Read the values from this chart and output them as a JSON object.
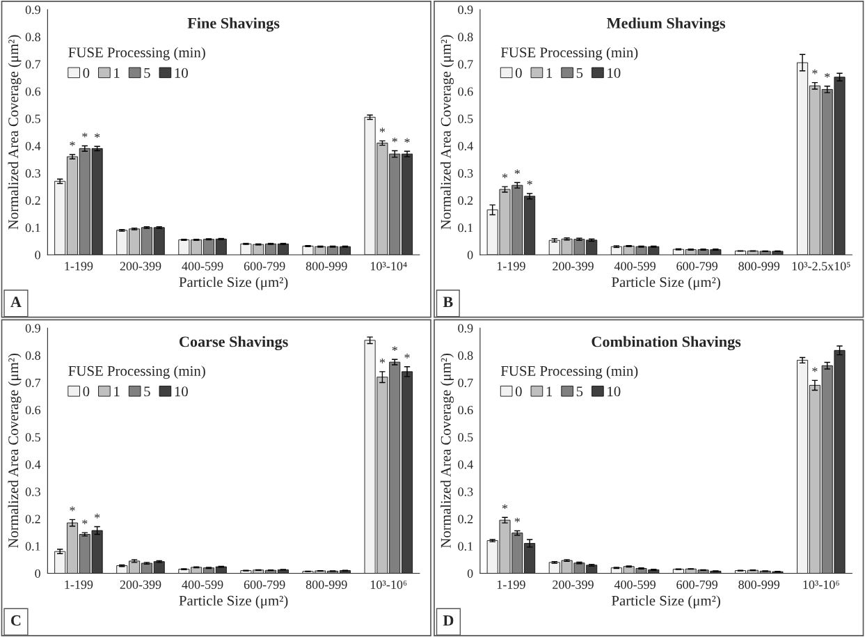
{
  "chart_data": [
    {
      "type": "bar",
      "title": "Fine Shavings",
      "xlabel": "Particle Size (μm²)",
      "ylabel": "Normalized Area Coverage (μm²)",
      "legend_title": "FUSE Processing (min)",
      "legend": "top left",
      "annotations": [
        "A"
      ],
      "categories": [
        "1-199",
        "200-399",
        "400-599",
        "600-799",
        "800-999",
        "10³-10⁴"
      ],
      "ylim": [
        0,
        0.9
      ],
      "yticks": [
        0,
        0.1,
        0.2,
        0.3,
        0.4,
        0.5,
        0.6,
        0.7,
        0.8,
        0.9
      ],
      "series": [
        {
          "name": "0",
          "color": "#f2f2f2",
          "values": [
            0.27,
            0.09,
            0.055,
            0.04,
            0.032,
            0.505
          ],
          "errors": [
            0.008,
            0.003,
            0.002,
            0.002,
            0.002,
            0.008
          ]
        },
        {
          "name": "1",
          "color": "#bfbfbf",
          "values": [
            0.36,
            0.095,
            0.055,
            0.038,
            0.03,
            0.41
          ],
          "errors": [
            0.008,
            0.003,
            0.002,
            0.002,
            0.002,
            0.008
          ],
          "value_labels": [
            "*",
            null,
            null,
            null,
            null,
            "*"
          ]
        },
        {
          "name": "5",
          "color": "#808080",
          "values": [
            0.39,
            0.1,
            0.057,
            0.04,
            0.03,
            0.37
          ],
          "errors": [
            0.01,
            0.003,
            0.002,
            0.002,
            0.002,
            0.012
          ],
          "value_labels": [
            "*",
            null,
            null,
            null,
            null,
            "*"
          ]
        },
        {
          "name": "10",
          "color": "#404040",
          "values": [
            0.39,
            0.1,
            0.058,
            0.04,
            0.03,
            0.37
          ],
          "errors": [
            0.008,
            0.003,
            0.002,
            0.002,
            0.002,
            0.01
          ],
          "value_labels": [
            "*",
            null,
            null,
            null,
            null,
            "*"
          ]
        }
      ]
    },
    {
      "type": "bar",
      "title": "Medium Shavings",
      "xlabel": "Particle Size (μm²)",
      "ylabel": "Normalized Area Coverage (μm²)",
      "legend_title": "FUSE Processing (min)",
      "legend": "top left",
      "annotations": [
        "B"
      ],
      "categories": [
        "1-199",
        "200-399",
        "400-599",
        "600-799",
        "800-999",
        "10³-2.5x10⁵"
      ],
      "ylim": [
        0,
        0.9
      ],
      "yticks": [
        0,
        0.1,
        0.2,
        0.3,
        0.4,
        0.5,
        0.6,
        0.7,
        0.8,
        0.9
      ],
      "series": [
        {
          "name": "0",
          "color": "#f2f2f2",
          "values": [
            0.165,
            0.053,
            0.03,
            0.02,
            0.014,
            0.705
          ],
          "errors": [
            0.018,
            0.006,
            0.003,
            0.002,
            0.001,
            0.03
          ]
        },
        {
          "name": "1",
          "color": "#bfbfbf",
          "values": [
            0.24,
            0.058,
            0.032,
            0.019,
            0.014,
            0.62
          ],
          "errors": [
            0.01,
            0.004,
            0.002,
            0.002,
            0.001,
            0.012
          ],
          "value_labels": [
            "*",
            null,
            null,
            null,
            null,
            "*"
          ]
        },
        {
          "name": "5",
          "color": "#808080",
          "values": [
            0.255,
            0.057,
            0.03,
            0.019,
            0.013,
            0.607
          ],
          "errors": [
            0.01,
            0.004,
            0.002,
            0.002,
            0.001,
            0.012
          ],
          "value_labels": [
            "*",
            null,
            null,
            null,
            null,
            "*"
          ]
        },
        {
          "name": "10",
          "color": "#404040",
          "values": [
            0.215,
            0.054,
            0.03,
            0.019,
            0.013,
            0.652
          ],
          "errors": [
            0.01,
            0.004,
            0.002,
            0.002,
            0.001,
            0.014
          ],
          "value_labels": [
            "*",
            null,
            null,
            null,
            null,
            null
          ]
        }
      ]
    },
    {
      "type": "bar",
      "title": "Coarse Shavings",
      "xlabel": "Particle Size (μm²)",
      "ylabel": "Normalized Area Coverage (μm²)",
      "legend_title": "FUSE Processing (min)",
      "legend": "top left",
      "annotations": [
        "C"
      ],
      "categories": [
        "1-199",
        "200-399",
        "400-599",
        "600-799",
        "800-999",
        "10³-10⁶"
      ],
      "ylim": [
        0,
        0.9
      ],
      "yticks": [
        0,
        0.1,
        0.2,
        0.3,
        0.4,
        0.5,
        0.6,
        0.7,
        0.8,
        0.9
      ],
      "series": [
        {
          "name": "0",
          "color": "#f2f2f2",
          "values": [
            0.08,
            0.028,
            0.015,
            0.01,
            0.007,
            0.855
          ],
          "errors": [
            0.008,
            0.003,
            0.002,
            0.001,
            0.001,
            0.012
          ]
        },
        {
          "name": "1",
          "color": "#bfbfbf",
          "values": [
            0.185,
            0.045,
            0.022,
            0.012,
            0.009,
            0.72
          ],
          "errors": [
            0.012,
            0.005,
            0.002,
            0.001,
            0.001,
            0.02
          ],
          "value_labels": [
            "*",
            null,
            null,
            null,
            null,
            "*"
          ]
        },
        {
          "name": "5",
          "color": "#808080",
          "values": [
            0.143,
            0.037,
            0.02,
            0.011,
            0.008,
            0.775
          ],
          "errors": [
            0.006,
            0.003,
            0.002,
            0.001,
            0.001,
            0.01
          ],
          "value_labels": [
            "*",
            null,
            null,
            null,
            null,
            "*"
          ]
        },
        {
          "name": "10",
          "color": "#404040",
          "values": [
            0.157,
            0.043,
            0.024,
            0.013,
            0.01,
            0.74
          ],
          "errors": [
            0.014,
            0.003,
            0.002,
            0.001,
            0.001,
            0.018
          ],
          "value_labels": [
            "*",
            null,
            null,
            null,
            null,
            "*"
          ]
        }
      ]
    },
    {
      "type": "bar",
      "title": "Combination Shavings",
      "xlabel": "Particle Size (μm²)",
      "ylabel": "Normalized Area Coverage (μm²)",
      "legend_title": "FUSE Processing (min)",
      "legend": "top left",
      "annotations": [
        "D"
      ],
      "categories": [
        "1-199",
        "200-399",
        "400-599",
        "600-799",
        "800-999",
        "10³-10⁶"
      ],
      "ylim": [
        0,
        0.9
      ],
      "yticks": [
        0,
        0.1,
        0.2,
        0.3,
        0.4,
        0.5,
        0.6,
        0.7,
        0.8,
        0.9
      ],
      "series": [
        {
          "name": "0",
          "color": "#f2f2f2",
          "values": [
            0.12,
            0.04,
            0.02,
            0.015,
            0.01,
            0.782
          ],
          "errors": [
            0.004,
            0.003,
            0.002,
            0.001,
            0.001,
            0.01
          ]
        },
        {
          "name": "1",
          "color": "#bfbfbf",
          "values": [
            0.195,
            0.047,
            0.025,
            0.016,
            0.011,
            0.69
          ],
          "errors": [
            0.01,
            0.003,
            0.002,
            0.001,
            0.001,
            0.018
          ],
          "value_labels": [
            "*",
            null,
            null,
            null,
            null,
            "*"
          ]
        },
        {
          "name": "5",
          "color": "#808080",
          "values": [
            0.148,
            0.038,
            0.018,
            0.012,
            0.008,
            0.762
          ],
          "errors": [
            0.008,
            0.003,
            0.002,
            0.001,
            0.001,
            0.012
          ],
          "value_labels": [
            "*",
            null,
            null,
            null,
            null,
            null
          ]
        },
        {
          "name": "10",
          "color": "#404040",
          "values": [
            0.11,
            0.03,
            0.013,
            0.008,
            0.006,
            0.818
          ],
          "errors": [
            0.014,
            0.003,
            0.002,
            0.001,
            0.001,
            0.016
          ]
        }
      ]
    }
  ]
}
